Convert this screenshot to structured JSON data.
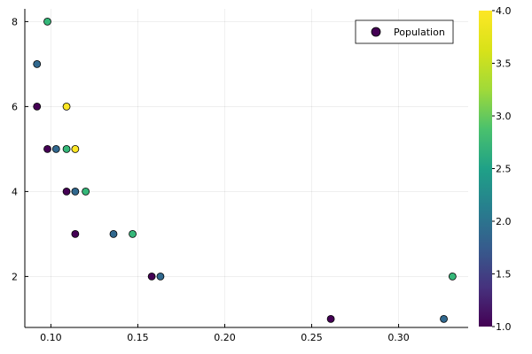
{
  "chart_data": {
    "type": "scatter",
    "title": "",
    "xlabel": "",
    "ylabel": "",
    "xlim": [
      0.085,
      0.34
    ],
    "ylim": [
      0.8,
      8.3
    ],
    "x_ticks": [
      0.1,
      0.15,
      0.2,
      0.25,
      0.3
    ],
    "x_tick_labels": [
      "0.10",
      "0.15",
      "0.20",
      "0.25",
      "0.30"
    ],
    "y_ticks": [
      2,
      4,
      6,
      8
    ],
    "y_tick_labels": [
      "2",
      "4",
      "6",
      "8"
    ],
    "grid": true,
    "legend": {
      "entries": [
        "Population"
      ],
      "position": "top-right"
    },
    "colorbar": {
      "colormap": "viridis",
      "range": [
        1.0,
        4.0
      ],
      "ticks": [
        1.0,
        1.5,
        2.0,
        2.5,
        3.0,
        3.5,
        4.0
      ],
      "tick_labels": [
        "1.0",
        "1.5",
        "2.0",
        "2.5",
        "3.0",
        "3.5",
        "4.0"
      ]
    },
    "series": [
      {
        "name": "Population",
        "points": [
          {
            "x": 0.098,
            "y": 8,
            "c": 3
          },
          {
            "x": 0.092,
            "y": 7,
            "c": 2
          },
          {
            "x": 0.092,
            "y": 6,
            "c": 1
          },
          {
            "x": 0.109,
            "y": 6,
            "c": 4
          },
          {
            "x": 0.098,
            "y": 5,
            "c": 1
          },
          {
            "x": 0.103,
            "y": 5,
            "c": 2
          },
          {
            "x": 0.109,
            "y": 5,
            "c": 3
          },
          {
            "x": 0.114,
            "y": 5,
            "c": 4
          },
          {
            "x": 0.109,
            "y": 4,
            "c": 1
          },
          {
            "x": 0.114,
            "y": 4,
            "c": 2
          },
          {
            "x": 0.12,
            "y": 4,
            "c": 3
          },
          {
            "x": 0.114,
            "y": 3,
            "c": 1
          },
          {
            "x": 0.136,
            "y": 3,
            "c": 2
          },
          {
            "x": 0.147,
            "y": 3,
            "c": 3
          },
          {
            "x": 0.158,
            "y": 2,
            "c": 1
          },
          {
            "x": 0.163,
            "y": 2,
            "c": 2
          },
          {
            "x": 0.331,
            "y": 2,
            "c": 3
          },
          {
            "x": 0.261,
            "y": 1,
            "c": 1
          },
          {
            "x": 0.326,
            "y": 1,
            "c": 2
          }
        ]
      }
    ]
  }
}
